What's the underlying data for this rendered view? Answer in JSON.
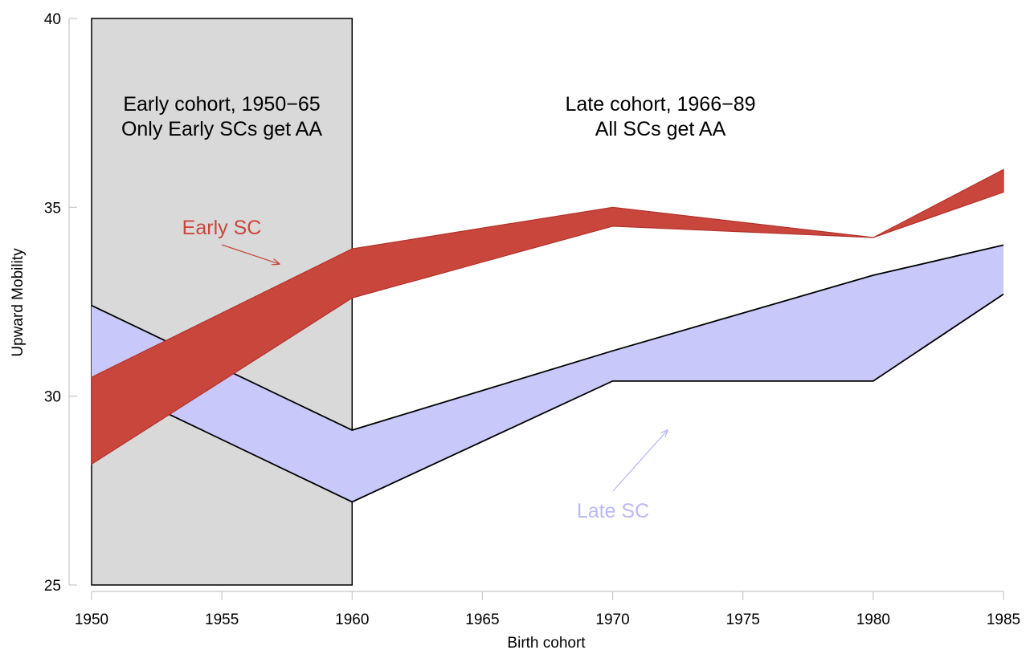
{
  "chart_data": {
    "type": "area",
    "title": "",
    "xlabel": "Birth cohort",
    "ylabel": "Upward Mobility",
    "xlim": [
      1950,
      1985
    ],
    "ylim": [
      25,
      40
    ],
    "x_ticks": [
      1950,
      1955,
      1960,
      1965,
      1970,
      1975,
      1980,
      1985
    ],
    "y_ticks": [
      25,
      30,
      35,
      40
    ],
    "grid": false,
    "shaded_region": {
      "x_start": 1950,
      "x_end": 1960,
      "y_start": 25,
      "y_end": 40,
      "color": "#d9d9d9"
    },
    "region_labels": [
      {
        "lines": [
          "Early cohort, 1950−65",
          "Only Early SCs get AA"
        ]
      },
      {
        "lines": [
          "Late cohort, 1966−89",
          "All SCs get AA"
        ]
      }
    ],
    "series": [
      {
        "name": "Early SC",
        "color": "#c9463d",
        "x": [
          1950,
          1960,
          1970,
          1980,
          1985
        ],
        "lower": [
          28.2,
          32.6,
          34.5,
          34.2,
          35.4
        ],
        "upper": [
          30.5,
          33.9,
          35.0,
          34.2,
          36.0
        ]
      },
      {
        "name": "Late SC",
        "color": "#c8c8fa",
        "x": [
          1950,
          1960,
          1970,
          1980,
          1985
        ],
        "lower": [
          30.5,
          27.2,
          30.4,
          30.4,
          32.7
        ],
        "upper": [
          32.4,
          29.1,
          31.2,
          33.2,
          34.0
        ]
      }
    ],
    "annotations": [
      {
        "text": "Early SC",
        "color": "#c9463d",
        "arrow_to_x": 1957.2,
        "arrow_to_y": 33.5
      },
      {
        "text": "Late SC",
        "color": "#b9b9f7",
        "arrow_to_x": 1972.1,
        "arrow_to_y": 29.1
      }
    ]
  }
}
